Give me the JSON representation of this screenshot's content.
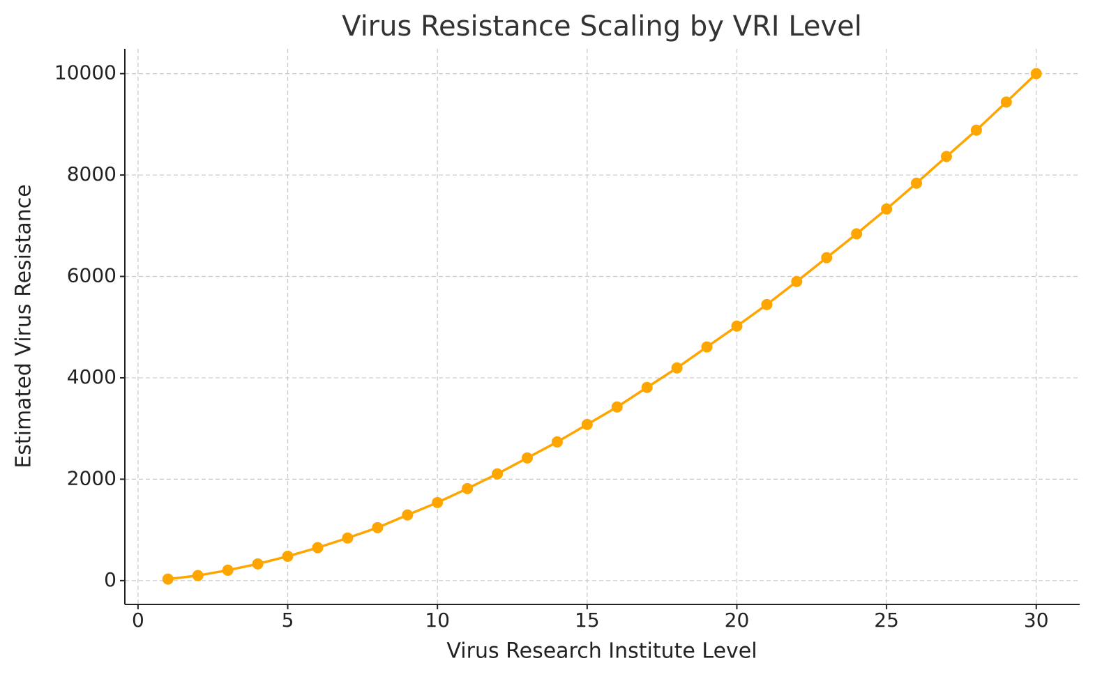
{
  "chart_data": {
    "type": "line",
    "title": "Virus Resistance Scaling by VRI Level",
    "x_label": "Virus Research Institute Level",
    "y_label": "Estimated Virus Resistance",
    "x": [
      1,
      2,
      3,
      4,
      5,
      6,
      7,
      8,
      9,
      10,
      11,
      12,
      13,
      14,
      15,
      16,
      17,
      18,
      19,
      20,
      21,
      22,
      23,
      24,
      25,
      26,
      27,
      28,
      29,
      30
    ],
    "series": [
      {
        "name": "Estimated Virus Resistance",
        "color": "#ffa500",
        "values": [
          30,
          100,
          205,
          330,
          480,
          650,
          840,
          1045,
          1295,
          1540,
          1815,
          2105,
          2420,
          2735,
          3080,
          3425,
          3810,
          4195,
          4610,
          5020,
          5445,
          5900,
          6370,
          6840,
          7330,
          7840,
          8365,
          8885,
          9440,
          10000
        ]
      }
    ],
    "xlim": [
      -0.44,
      31.45
    ],
    "ylim": [
      -470,
      10490
    ],
    "xticks": [
      0,
      5,
      10,
      15,
      20,
      25,
      30
    ],
    "yticks": [
      0,
      2000,
      4000,
      6000,
      8000,
      10000
    ],
    "grid": true
  }
}
